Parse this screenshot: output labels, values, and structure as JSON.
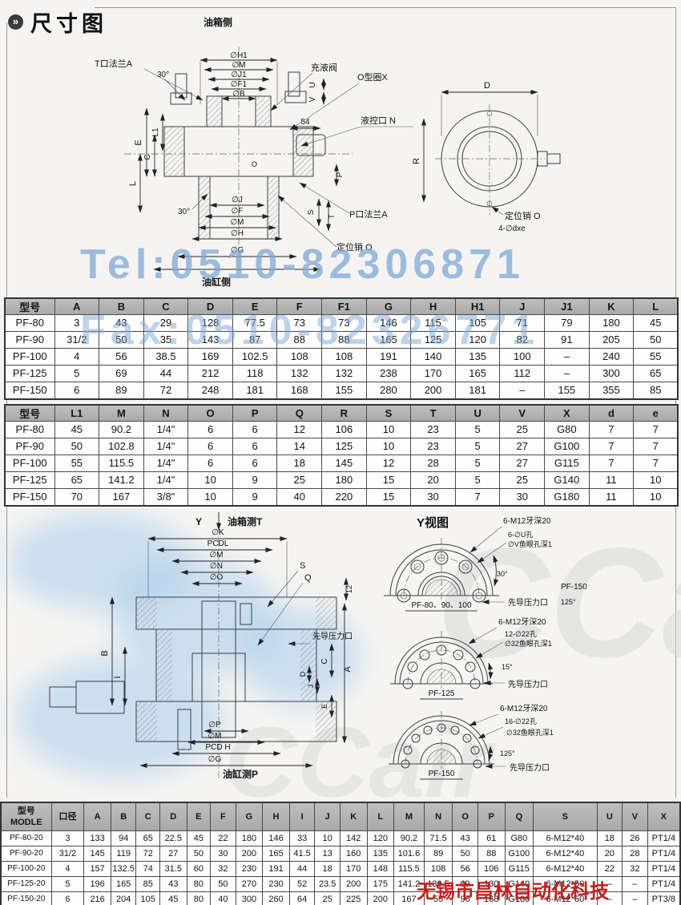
{
  "page": {
    "title": "尺寸图"
  },
  "watermarks": {
    "tel": "Tel:0510-82306871",
    "fax": "Fax:0510-82326771",
    "company": "无锡市昌林自动化科技",
    "logo": "CCair"
  },
  "top_drawing": {
    "labels": {
      "oil_tank_side": "油箱侧",
      "dia_h1": "∅H1",
      "dia_m_top": "∅M",
      "dia_j1": "∅J1",
      "dia_f1": "∅F1",
      "dia_b": "∅B",
      "t_flange": "T口法兰A",
      "angle30_top": "30°",
      "fill_valve": "充液阀",
      "o_ring": "O型圈X",
      "pilot_n": "液控口 N",
      "dim_54": "54",
      "u": "U",
      "v": "V",
      "e": "E",
      "l1": "L1",
      "c": "C",
      "l": "L",
      "o": "O",
      "p": "P",
      "s": "S",
      "t": "T",
      "angle30_bot": "30°",
      "dia_j": "∅J",
      "dia_f": "∅F",
      "dia_m_bot": "∅M",
      "dia_h": "∅H",
      "dia_g": "∅G",
      "cyl_side": "油缸侧",
      "p_flange": "P口法兰A",
      "loc_pin": "定位销 O",
      "d": "D",
      "r": "R",
      "loc_pin2": "定位销 O",
      "four_dxe": "4-∅dxe"
    }
  },
  "middle_drawing": {
    "labels": {
      "y": "Y",
      "oil_tank_t": "油箱测T",
      "dia_k": "∅K",
      "pcdl": "PCDL",
      "dia_m": "∅M",
      "dia_n": "∅N",
      "dia_o": "∅O",
      "s": "S",
      "q": "Q",
      "dim12": "12",
      "b": "B",
      "i": "I",
      "c": "C",
      "a": "A",
      "d": "D",
      "j": "J",
      "e": "E",
      "pilot_pressure": "先导压力口",
      "dia_p": "∅P",
      "dia_m2": "∅M",
      "pcd_h": "PCD H",
      "dia_g": "∅G",
      "cyl_p": "油缸测P",
      "y_view": "Y视图",
      "v1_thread": "6-M12牙深20",
      "v1_holes": "6-∅U孔",
      "v1_cb": "∅V鱼眼孔深1",
      "v1_angle": "30°",
      "v1_name": "PF-80、90、100",
      "v1_pilot": "先导压力口",
      "v1_r1": "PF-150",
      "v1_r2": "125°",
      "v2_thread": "6-M12牙深20",
      "v2_holes": "12-∅22孔",
      "v2_cb": "∅32鱼眼孔深1",
      "v2_angle": "15°",
      "v2_name": "PF-125",
      "v2_pilot": "先导压力口",
      "v3_thread": "6-M12牙深20",
      "v3_holes": "16-∅22孔",
      "v3_cb": "∅32鱼眼孔深1",
      "v3_angle": "125°",
      "v3_name": "PF-150",
      "v3_pilot": "先导压力口"
    }
  },
  "tables": {
    "t1": {
      "headers": [
        "型号",
        "A",
        "B",
        "C",
        "D",
        "E",
        "F",
        "F1",
        "G",
        "H",
        "H1",
        "J",
        "J1",
        "K",
        "L"
      ],
      "rows": [
        [
          "PF-80",
          "3",
          "43",
          "29",
          "128",
          "77.5",
          "73",
          "73",
          "146",
          "115",
          "105",
          "71",
          "79",
          "180",
          "45"
        ],
        [
          "PF-90",
          "31/2",
          "50",
          "35",
          "143",
          "87",
          "88",
          "88",
          "165",
          "125",
          "120",
          "82",
          "91",
          "205",
          "50"
        ],
        [
          "PF-100",
          "4",
          "56",
          "38.5",
          "169",
          "102.5",
          "108",
          "108",
          "191",
          "140",
          "135",
          "100",
          "–",
          "240",
          "55"
        ],
        [
          "PF-125",
          "5",
          "69",
          "44",
          "212",
          "118",
          "132",
          "132",
          "238",
          "170",
          "165",
          "112",
          "–",
          "300",
          "65"
        ],
        [
          "PF-150",
          "6",
          "89",
          "72",
          "248",
          "181",
          "168",
          "155",
          "280",
          "200",
          "181",
          "–",
          "155",
          "355",
          "85"
        ]
      ]
    },
    "t2": {
      "headers": [
        "型号",
        "L1",
        "M",
        "N",
        "O",
        "P",
        "Q",
        "R",
        "S",
        "T",
        "U",
        "V",
        "X",
        "d",
        "e"
      ],
      "rows": [
        [
          "PF-80",
          "45",
          "90.2",
          "1/4\"",
          "6",
          "6",
          "12",
          "106",
          "10",
          "23",
          "5",
          "25",
          "G80",
          "7",
          "7"
        ],
        [
          "PF-90",
          "50",
          "102.8",
          "1/4\"",
          "6",
          "6",
          "14",
          "125",
          "10",
          "23",
          "5",
          "27",
          "G100",
          "7",
          "7"
        ],
        [
          "PF-100",
          "55",
          "115.5",
          "1/4\"",
          "6",
          "6",
          "18",
          "145",
          "12",
          "28",
          "5",
          "27",
          "G115",
          "7",
          "7"
        ],
        [
          "PF-125",
          "65",
          "141.2",
          "1/4\"",
          "10",
          "9",
          "25",
          "180",
          "15",
          "20",
          "5",
          "25",
          "G140",
          "11",
          "10"
        ],
        [
          "PF-150",
          "70",
          "167",
          "3/8\"",
          "10",
          "9",
          "40",
          "220",
          "15",
          "30",
          "7",
          "30",
          "G180",
          "11",
          "10"
        ]
      ]
    },
    "t3": {
      "headers": [
        "型号\nMODLE",
        "口径",
        "A",
        "B",
        "C",
        "D",
        "E",
        "F",
        "G",
        "H",
        "I",
        "J",
        "K",
        "L",
        "M",
        "N",
        "O",
        "P",
        "Q",
        "S",
        "U",
        "V",
        "X"
      ],
      "rows": [
        [
          "PF-80-20",
          "3",
          "133",
          "94",
          "65",
          "22.5",
          "45",
          "22",
          "180",
          "146",
          "33",
          "10",
          "142",
          "120",
          "90.2",
          "71.5",
          "43",
          "61",
          "G80",
          "6-M12*40",
          "18",
          "26",
          "PT1/4"
        ],
        [
          "PF-90-20",
          "31/2",
          "145",
          "119",
          "72",
          "27",
          "50",
          "30",
          "200",
          "165",
          "41.5",
          "13",
          "160",
          "135",
          "101.6",
          "89",
          "50",
          "88",
          "G100",
          "6-M12*40",
          "20",
          "28",
          "PT1/4"
        ],
        [
          "PF-100-20",
          "4",
          "157",
          "132.5",
          "74",
          "31.5",
          "60",
          "32",
          "230",
          "191",
          "44",
          "18",
          "170",
          "148",
          "115.5",
          "108",
          "56",
          "106",
          "G115",
          "6-M12*40",
          "22",
          "32",
          "PT1/4"
        ],
        [
          "PF-125-20",
          "5",
          "196",
          "165",
          "85",
          "43",
          "80",
          "50",
          "270",
          "230",
          "52",
          "23.5",
          "200",
          "175",
          "141.2",
          "130.5",
          "69",
          "130",
          "G140",
          "6-M12*50",
          "–",
          "–",
          "PT1/4"
        ],
        [
          "PF-150-20",
          "6",
          "216",
          "204",
          "105",
          "45",
          "80",
          "40",
          "300",
          "260",
          "64",
          "25",
          "225",
          "200",
          "167",
          "55",
          "96",
          "168",
          "G180",
          "6-M12*50",
          "–",
          "–",
          "PT3/8"
        ]
      ]
    }
  }
}
